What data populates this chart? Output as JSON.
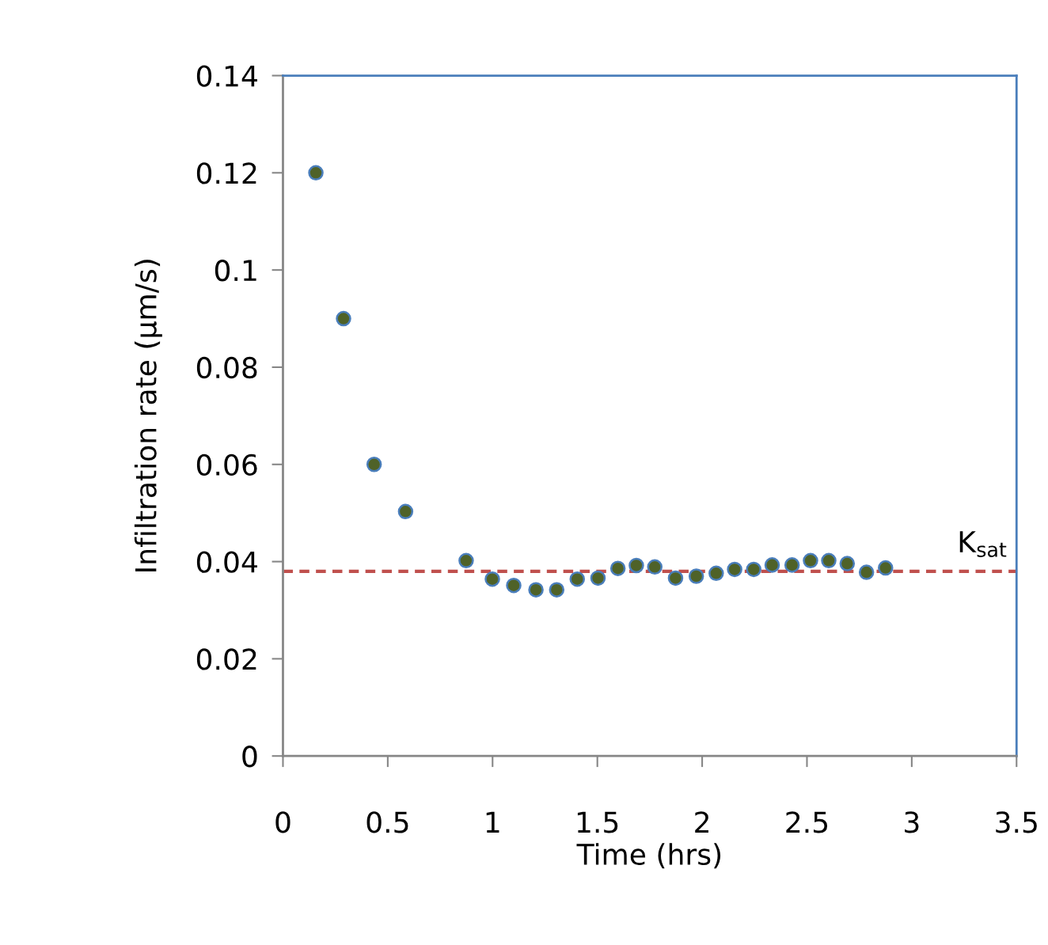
{
  "chart_data": {
    "type": "scatter",
    "xlabel": "Time (hrs)",
    "ylabel": "Infiltration rate (µm/s)",
    "x": [
      0.157,
      0.289,
      0.435,
      0.585,
      0.874,
      0.999,
      1.101,
      1.207,
      1.306,
      1.404,
      1.503,
      1.598,
      1.686,
      1.774,
      1.873,
      1.972,
      2.067,
      2.155,
      2.246,
      2.334,
      2.429,
      2.517,
      2.604,
      2.692,
      2.784,
      2.875
    ],
    "series": [
      {
        "color": "#4f6228",
        "values": [
          0.12,
          0.09,
          0.06,
          0.0503,
          0.0402,
          0.0364,
          0.0351,
          0.0342,
          0.0342,
          0.0364,
          0.0366,
          0.0386,
          0.0392,
          0.0389,
          0.0366,
          0.037,
          0.0376,
          0.0384,
          0.0384,
          0.0393,
          0.0393,
          0.0402,
          0.0402,
          0.0396,
          0.0378,
          0.0387
        ]
      }
    ],
    "marker": "circle",
    "xlim": [
      0,
      3.5
    ],
    "xticks": [
      0,
      0.5,
      1,
      1.5,
      2,
      2.5,
      3,
      3.5
    ],
    "ylim": [
      0,
      0.14
    ],
    "yticks": [
      0,
      0.02,
      0.04,
      0.06,
      0.08,
      0.1,
      0.12,
      0.14
    ],
    "ref_lines": [
      {
        "axis": "y",
        "value": 0.038,
        "label": "K$_{sat}$",
        "color": "#c0504d",
        "line_style": "dashed"
      }
    ],
    "grid": false,
    "legend": false
  }
}
